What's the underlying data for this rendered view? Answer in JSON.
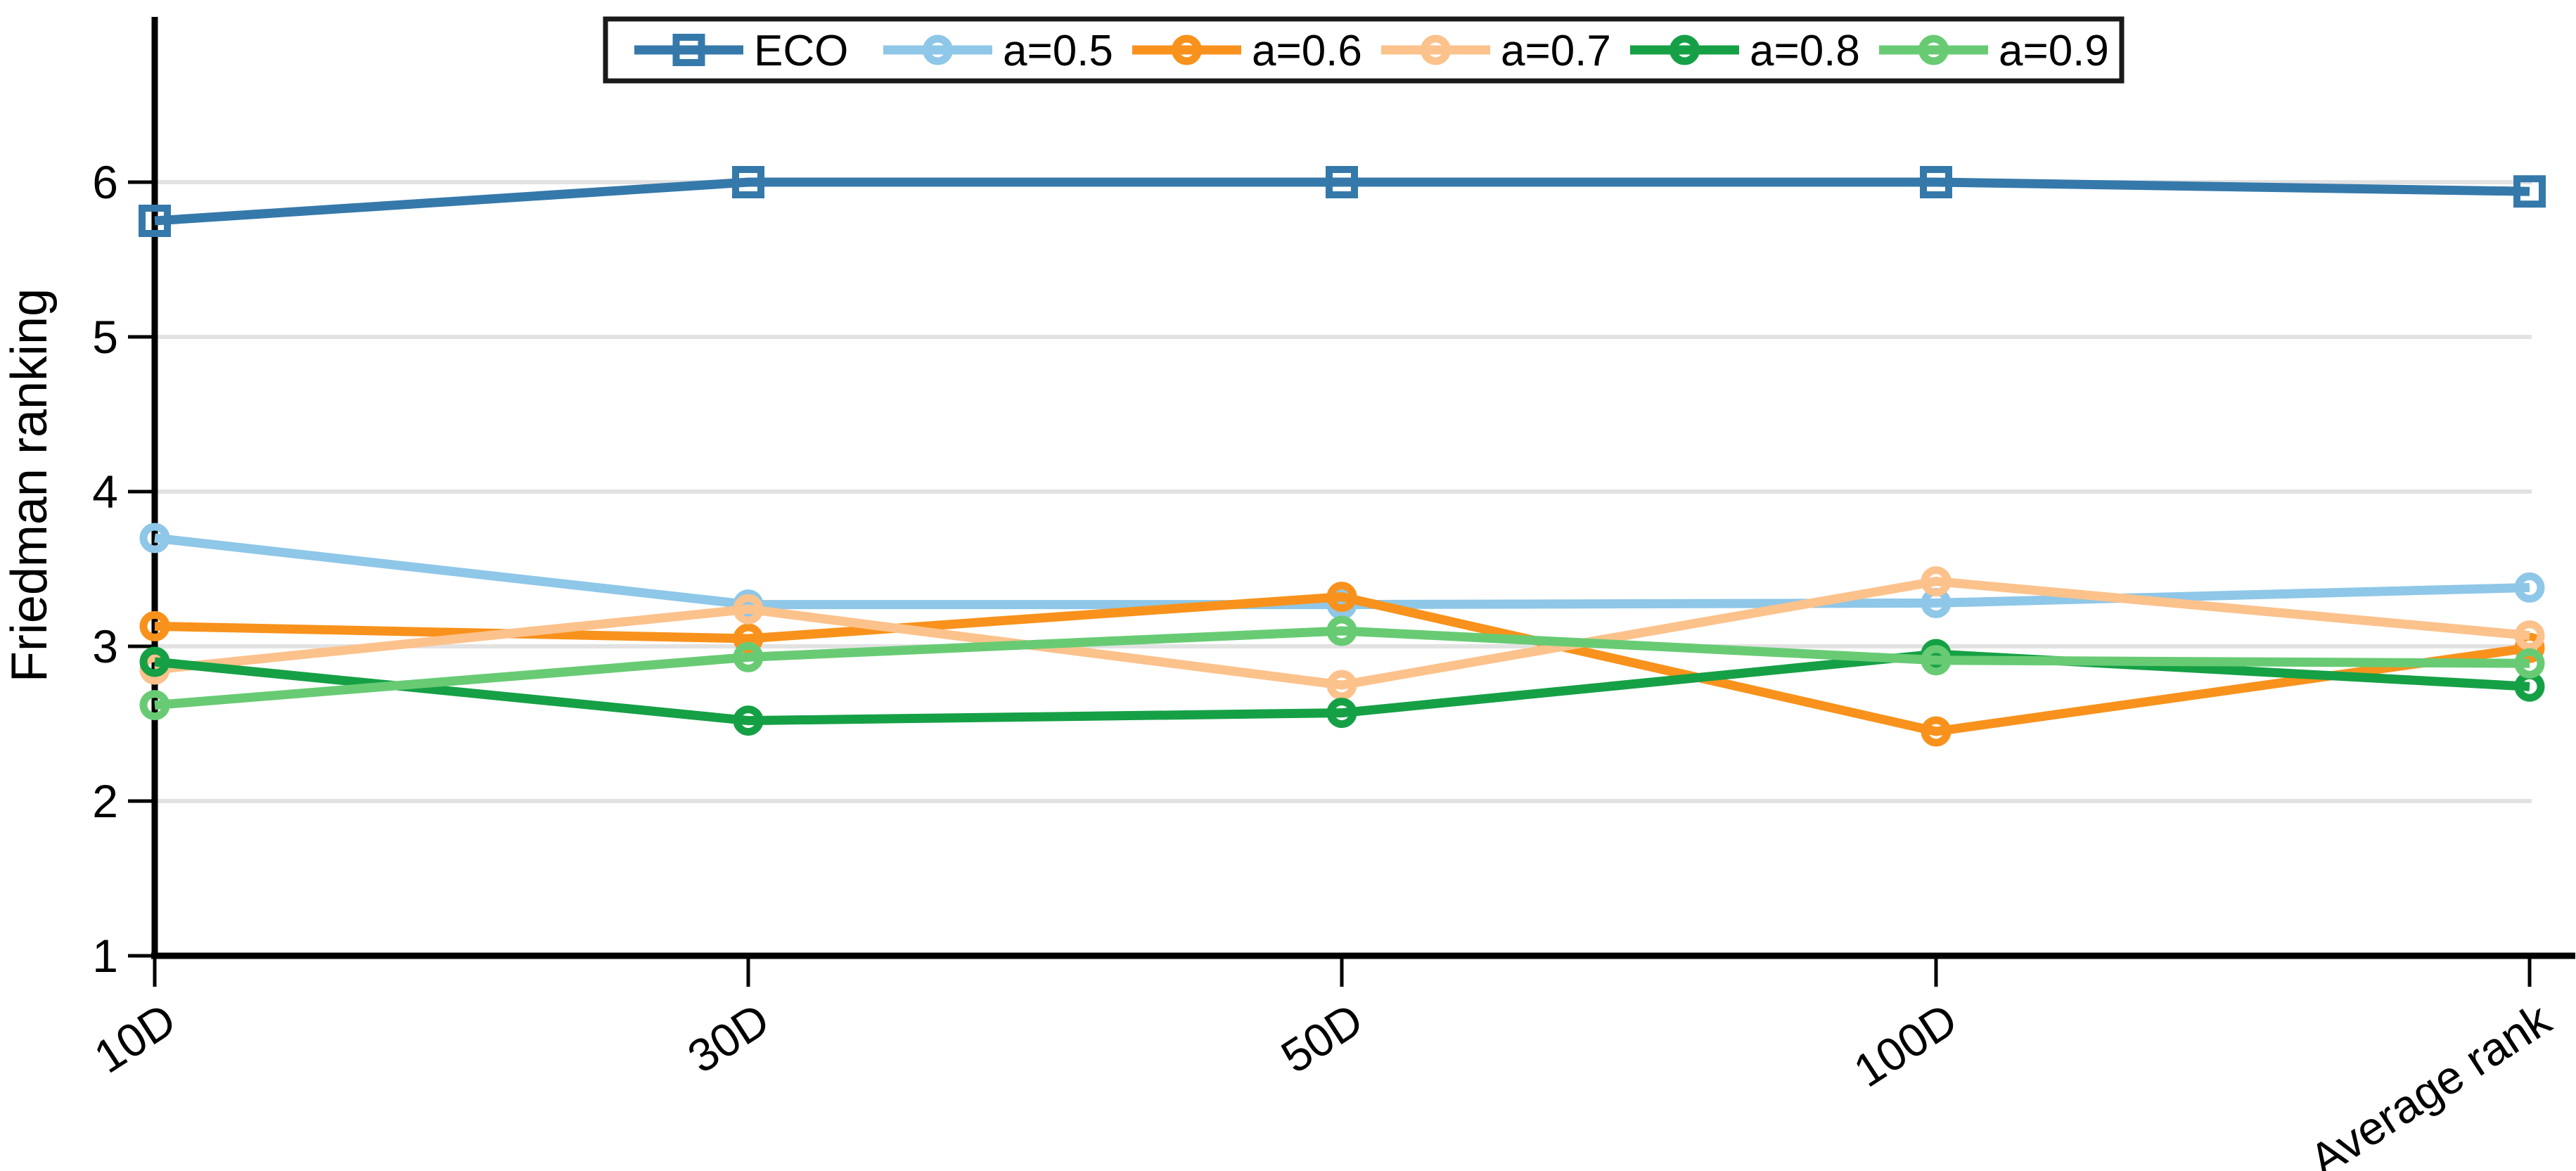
{
  "chart_data": {
    "type": "line",
    "title": "",
    "xlabel": "",
    "ylabel": "Friedman ranking",
    "categories": [
      "10D",
      "30D",
      "50D",
      "100D",
      "Average rank"
    ],
    "y_ticks": [
      1,
      2,
      3,
      4,
      5,
      6
    ],
    "ylim": [
      1,
      7.07
    ],
    "grid": "horizontal",
    "grid_color": "#e2e2e2",
    "axis_color": "#000000",
    "background_color": "#ffffff",
    "legend": {
      "position": "top-center",
      "border_color": "#1a1a1a",
      "fill": "#ffffff"
    },
    "series": [
      {
        "name": "ECO",
        "color": "#3579ab",
        "marker": "square",
        "values": [
          5.75,
          6.0,
          6.0,
          6.0,
          5.94
        ]
      },
      {
        "name": "a=0.5",
        "color": "#8ec7e8",
        "marker": "circle",
        "values": [
          3.7,
          3.27,
          3.27,
          3.28,
          3.38
        ]
      },
      {
        "name": "a=0.6",
        "color": "#f8921c",
        "marker": "circle",
        "values": [
          3.13,
          3.05,
          3.32,
          2.45,
          2.99
        ]
      },
      {
        "name": "a=0.7",
        "color": "#fcc28c",
        "marker": "circle",
        "values": [
          2.85,
          3.24,
          2.75,
          3.42,
          3.07
        ]
      },
      {
        "name": "a=0.8",
        "color": "#16a046",
        "marker": "circle",
        "values": [
          2.9,
          2.52,
          2.57,
          2.95,
          2.74
        ]
      },
      {
        "name": "a=0.9",
        "color": "#68cb74",
        "marker": "circle",
        "values": [
          2.62,
          2.93,
          3.1,
          2.91,
          2.89
        ]
      }
    ]
  }
}
